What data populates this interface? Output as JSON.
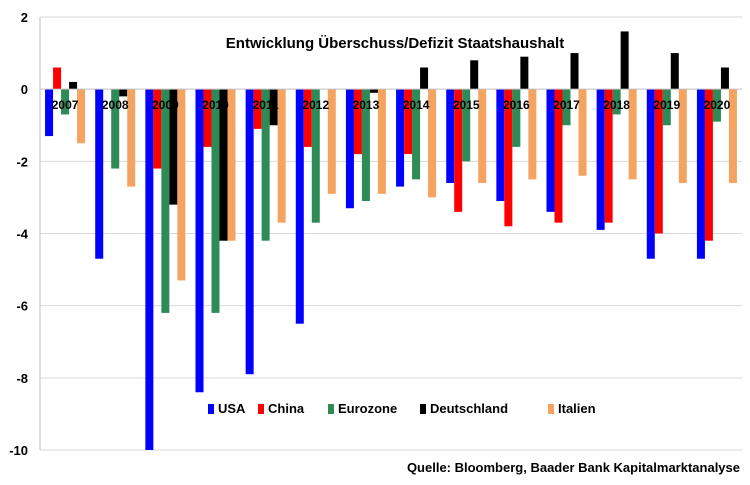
{
  "chart_data": {
    "type": "bar",
    "title": "Entwicklung Überschuss/Defizit Staatshaushalt",
    "xlabel": "",
    "ylabel": "",
    "ylim": [
      -10,
      2
    ],
    "yticks": [
      2,
      0,
      -2,
      -4,
      -6,
      -8,
      -10
    ],
    "grid": true,
    "legend_position": "bottom-center",
    "categories": [
      "2007",
      "2008",
      "2009",
      "2010",
      "2011",
      "2012",
      "2013",
      "2014",
      "2015",
      "2016",
      "2017",
      "2018",
      "2019",
      "2020"
    ],
    "series": [
      {
        "name": "USA",
        "color": "#0000ff",
        "values": [
          -1.3,
          -4.7,
          -10.0,
          -8.4,
          -7.9,
          -6.5,
          -3.3,
          -2.7,
          -2.6,
          -3.1,
          -3.4,
          -3.9,
          -4.7,
          -4.7
        ]
      },
      {
        "name": "China",
        "color": "#ff0000",
        "values": [
          0.6,
          0.0,
          -2.2,
          -1.6,
          -1.1,
          -1.6,
          -1.8,
          -1.8,
          -3.4,
          -3.8,
          -3.7,
          -3.7,
          -4.0,
          -4.2
        ]
      },
      {
        "name": "Eurozone",
        "color": "#2e8b57",
        "values": [
          -0.7,
          -2.2,
          -6.2,
          -6.2,
          -4.2,
          -3.7,
          -3.1,
          -2.5,
          -2.0,
          -1.6,
          -1.0,
          -0.7,
          -1.0,
          -0.9
        ]
      },
      {
        "name": "Deutschland",
        "color": "#000000",
        "values": [
          0.2,
          -0.2,
          -3.2,
          -4.2,
          -1.0,
          0.0,
          -0.1,
          0.6,
          0.8,
          0.9,
          1.0,
          1.6,
          1.0,
          0.6
        ]
      },
      {
        "name": "Italien",
        "color": "#f4a460",
        "values": [
          -1.5,
          -2.7,
          -5.3,
          -4.2,
          -3.7,
          -2.9,
          -2.9,
          -3.0,
          -2.6,
          -2.5,
          -2.4,
          -2.5,
          -2.6,
          -2.6
        ]
      }
    ]
  },
  "source": "Quelle: Bloomberg, Baader Bank Kapitalmarktanalyse"
}
